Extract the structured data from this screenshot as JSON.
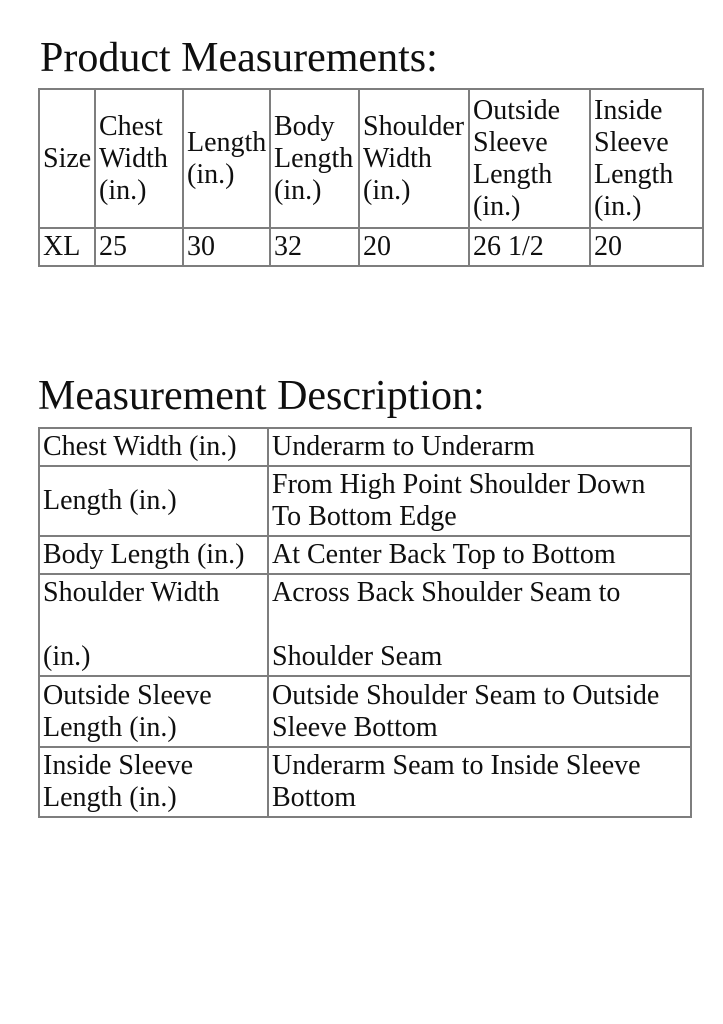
{
  "page": {
    "background": "#ffffff",
    "text_color": "#0f0f0f",
    "table_border_color": "#7e7e7e"
  },
  "product_measurements": {
    "title": "Product Measurements:",
    "columns": [
      "Size",
      "Chest\nWidth\n(in.)",
      "Length\n(in.)",
      "Body\nLength\n(in.)",
      "Shoulder\nWidth\n(in.)",
      "Outside\nSleeve\nLength\n(in.)",
      "Inside\nSleeve\nLength\n(in.)"
    ],
    "rows": [
      {
        "size": "XL",
        "chest_width": "25",
        "length": "30",
        "body_length": "32",
        "shoulder_width": "20",
        "outside_sleeve_length": "26 1/2",
        "inside_sleeve_length": "20"
      }
    ]
  },
  "measurement_description": {
    "title": "Measurement Description:",
    "rows": [
      {
        "label": "Chest Width (in.)",
        "description": "Underarm to Underarm"
      },
      {
        "label": "Length (in.)",
        "description": "From High Point Shoulder Down\nTo Bottom Edge"
      },
      {
        "label": "Body Length (in.)",
        "description": "At Center Back Top to Bottom"
      },
      {
        "label": "Shoulder Width\n\n(in.)",
        "description": "Across Back Shoulder Seam to\n\nShoulder Seam"
      },
      {
        "label": "Outside Sleeve\nLength (in.)",
        "description": "Outside Shoulder Seam to Outside\nSleeve Bottom"
      },
      {
        "label": "Inside Sleeve\nLength (in.)",
        "description": "Underarm Seam to Inside Sleeve\nBottom"
      }
    ]
  }
}
